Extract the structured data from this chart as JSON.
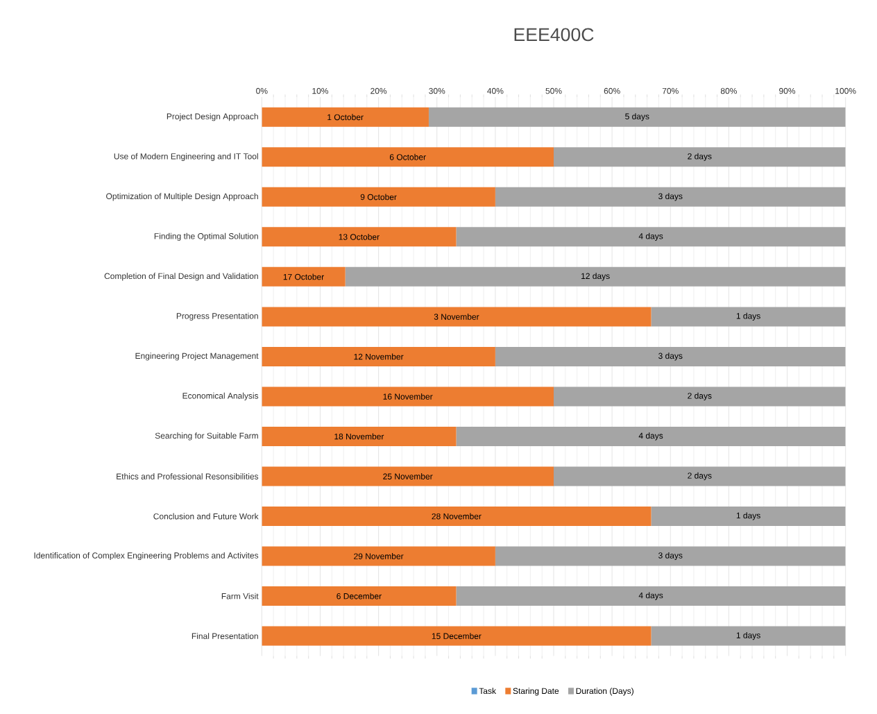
{
  "chart_data": {
    "type": "bar",
    "orientation": "horizontal",
    "stacked": true,
    "title": "EEE400C",
    "categories": [
      "Project Design Approach",
      "Use of Modern Engineering and IT Tool",
      "Optimization of Multiple Design Approach",
      "Finding the Optimal Solution",
      "Completion of Final Design and Validation",
      "Progress Presentation",
      "Engineering Project Management",
      "Economical Analysis",
      "Searching for Suitable Farm",
      "Ethics and Professional Resonsibilities",
      "Conclusion and Future Work",
      "Identification of Complex Engineering Problems and Activites",
      "Farm Visit",
      "Final Presentation"
    ],
    "series": [
      {
        "name": "Task",
        "color": "#5b9bd5",
        "values": [
          null,
          null,
          null,
          null,
          null,
          null,
          null,
          null,
          null,
          null,
          null,
          null,
          null,
          null
        ]
      },
      {
        "name": "Staring Date",
        "color": "#ed7d31",
        "values": [
          28.6,
          50,
          40,
          33.3,
          14.3,
          66.7,
          40,
          50,
          33.3,
          50,
          66.7,
          40,
          33.3,
          66.7
        ],
        "value_labels": [
          "1 October",
          "6 October",
          "9 October",
          "13 October",
          "17 October",
          "3 November",
          "12 November",
          "16 November",
          "18 November",
          "25 November",
          "28 November",
          "29 November",
          "6 December",
          "15 December"
        ]
      },
      {
        "name": "Duration (Days)",
        "color": "#a5a5a5",
        "values": [
          71.4,
          50,
          60,
          66.7,
          85.7,
          33.3,
          60,
          50,
          66.7,
          50,
          33.3,
          60,
          66.7,
          33.3
        ]
      }
    ],
    "annotations": [
      "5 days",
      "2 days",
      "3 days",
      "4 days",
      "12 days",
      "1 days",
      "3 days",
      "2 days",
      "4 days",
      "2 days",
      "1 days",
      "3 days",
      "4 days",
      "1 days"
    ],
    "xlim": [
      0,
      100
    ],
    "xticks": [
      {
        "value": 0,
        "label": "0%"
      },
      {
        "value": 10,
        "label": "10%"
      },
      {
        "value": 20,
        "label": "20%"
      },
      {
        "value": 30,
        "label": "30%"
      },
      {
        "value": 40,
        "label": "40%"
      },
      {
        "value": 50,
        "label": "50%"
      },
      {
        "value": 60,
        "label": "60%"
      },
      {
        "value": 70,
        "label": "70%"
      },
      {
        "value": 80,
        "label": "80%"
      },
      {
        "value": 90,
        "label": "90%"
      },
      {
        "value": 100,
        "label": "100%"
      }
    ],
    "grid": "x",
    "legend": "bottom"
  }
}
